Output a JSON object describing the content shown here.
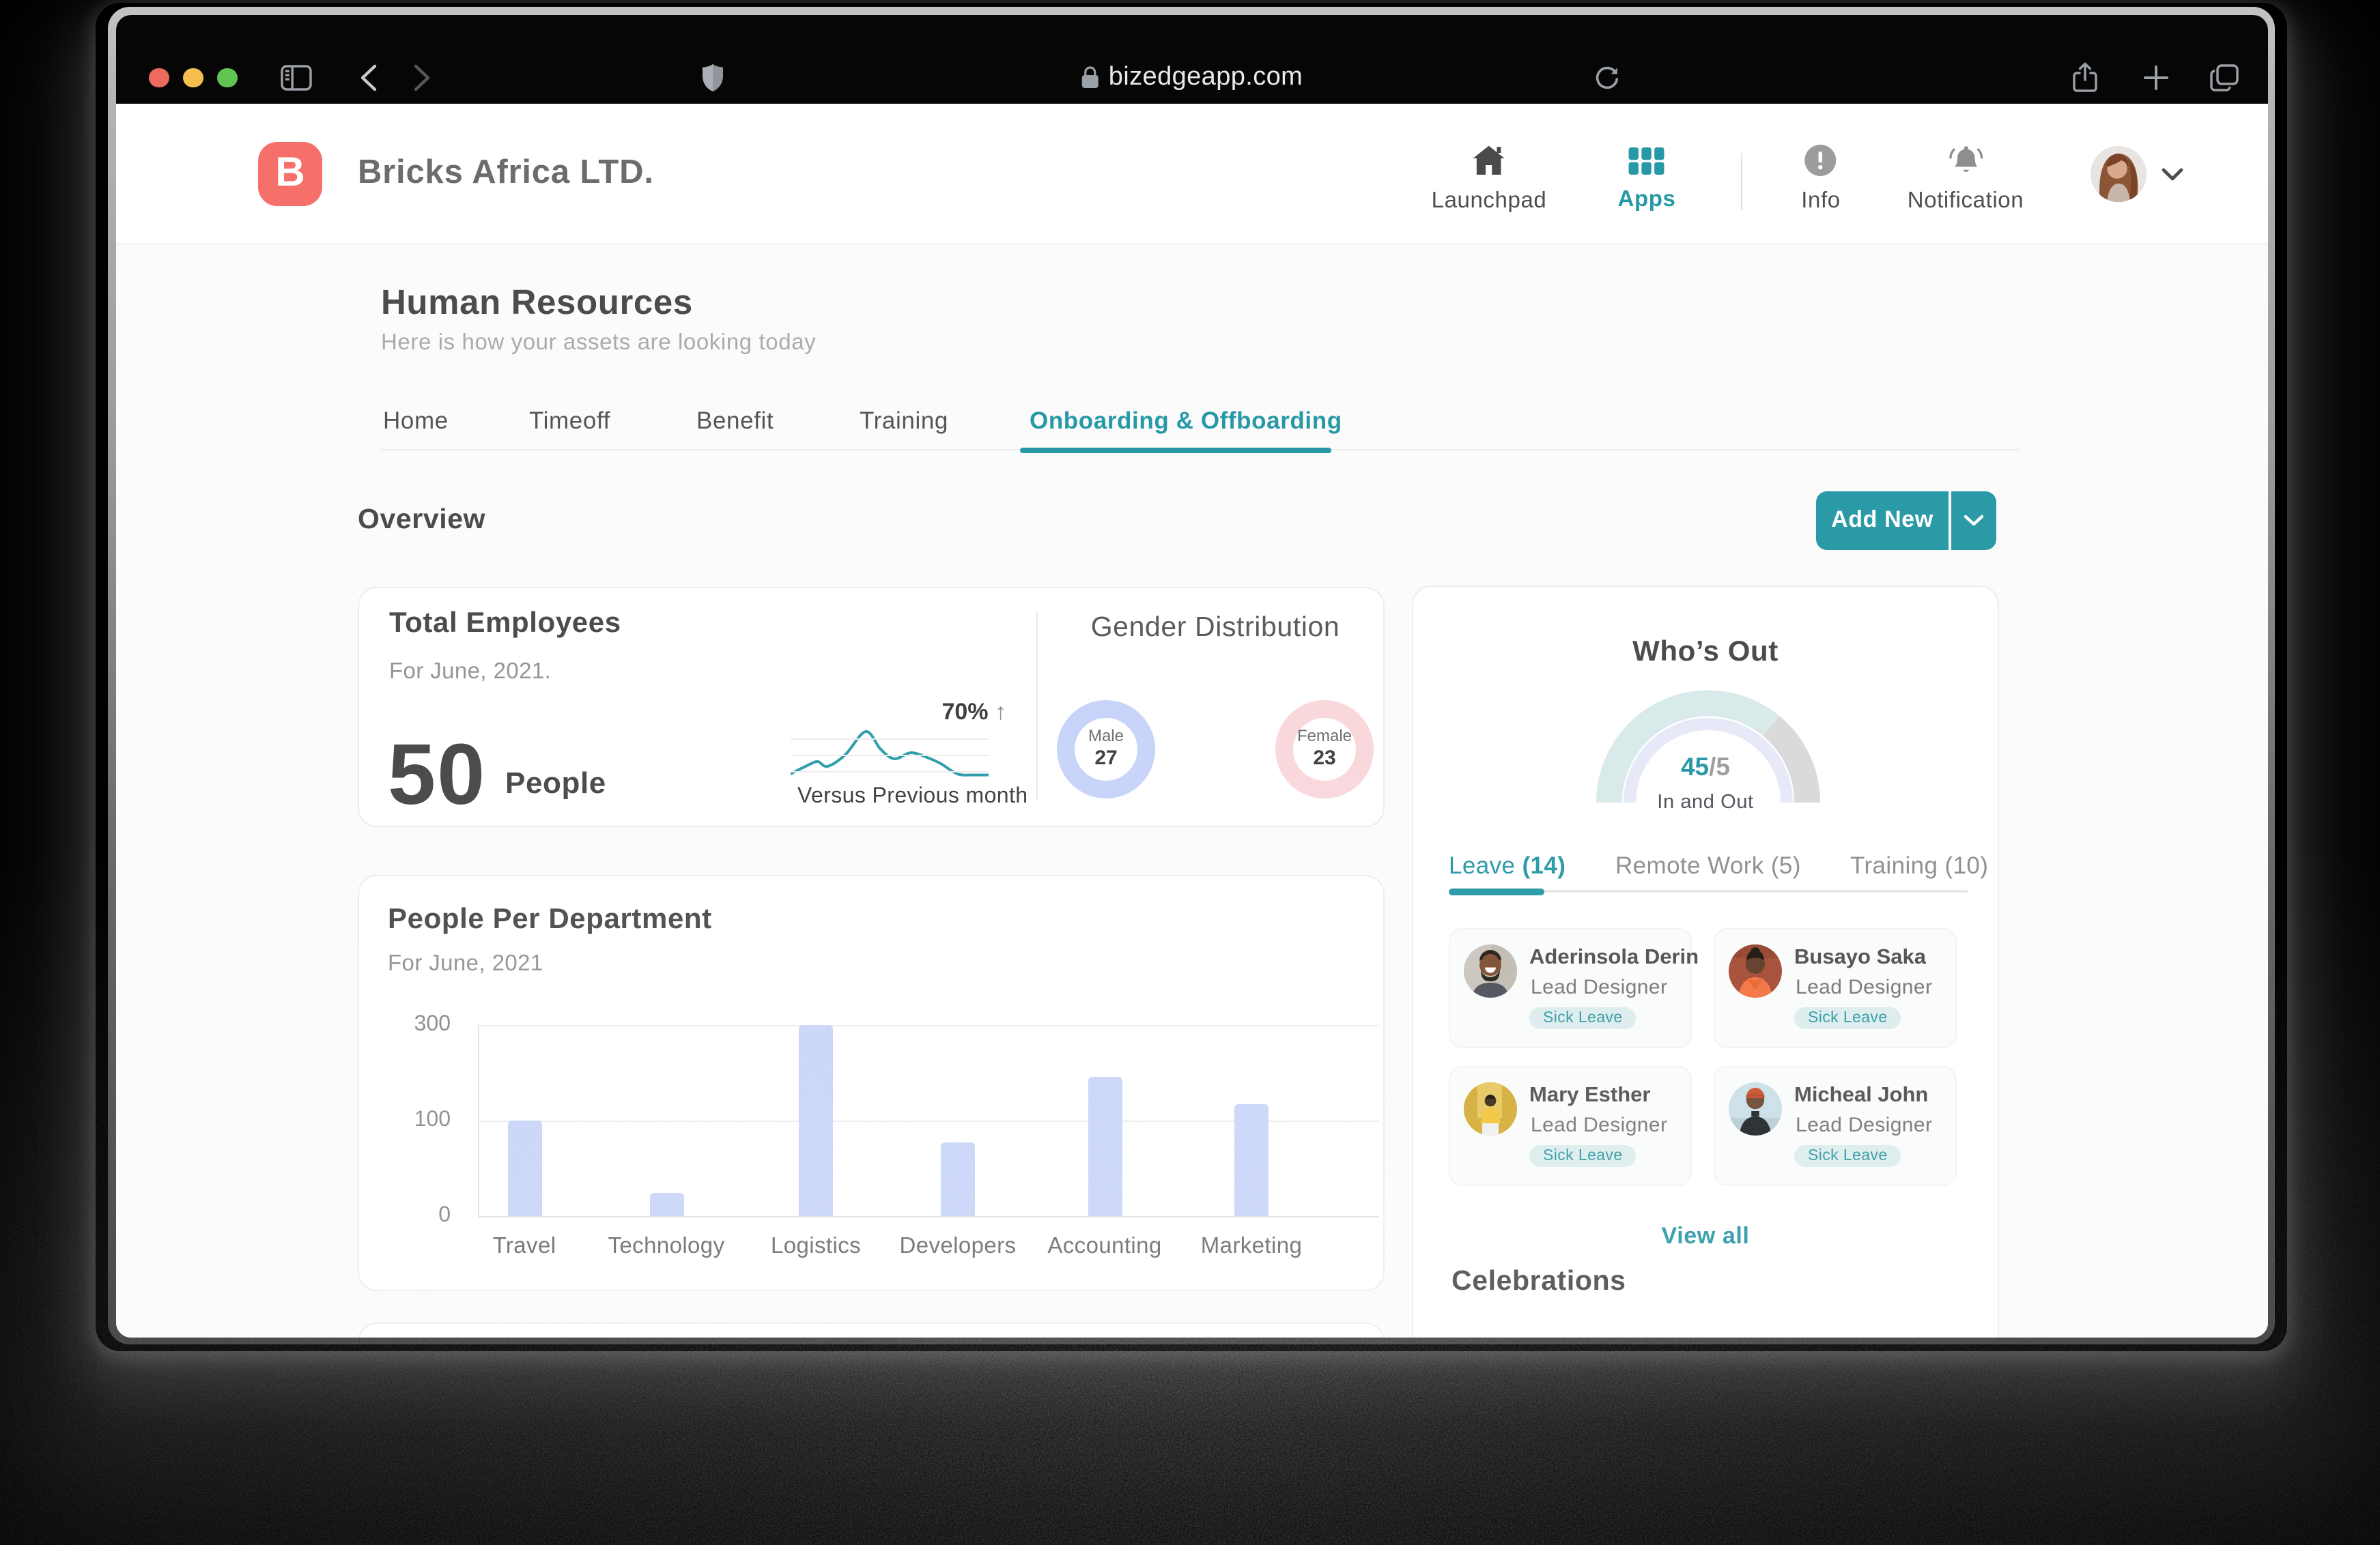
{
  "browser": {
    "url": "bizedgeapp.com",
    "traffic_lights": [
      "close",
      "minimize",
      "zoom"
    ],
    "toolbar_icons": [
      "sidebar-icon",
      "back-icon",
      "forward-icon",
      "shield-icon",
      "lock-icon",
      "reload-icon",
      "share-icon",
      "new-tab-icon",
      "tabs-overview-icon"
    ]
  },
  "nav": {
    "logo_letter": "B",
    "company": "Bricks Africa LTD.",
    "items": [
      {
        "label": "Launchpad",
        "icon": "home-icon",
        "active": false
      },
      {
        "label": "Apps",
        "icon": "apps-grid-icon",
        "active": true
      },
      {
        "label": "Info",
        "icon": "info-icon",
        "active": false
      },
      {
        "label": "Notification",
        "icon": "bell-icon",
        "active": false
      }
    ],
    "avatar": "user-avatar",
    "avatar_menu_icon": "chevron-down-icon"
  },
  "page": {
    "title": "Human Resources",
    "subtitle": "Here is how your assets are looking today",
    "tabs": [
      {
        "label": "Home",
        "active": false
      },
      {
        "label": "Timeoff",
        "active": false
      },
      {
        "label": "Benefit",
        "active": false
      },
      {
        "label": "Training",
        "active": false
      },
      {
        "label": "Onboarding & Offboarding",
        "active": true
      }
    ],
    "section_title": "Overview",
    "add_new_label": "Add New"
  },
  "total_employees": {
    "title": "Total Employees",
    "date": "For June, 2021.",
    "count": "50",
    "unit": "People",
    "trend_pct": "70%",
    "trend_arrow": "↑",
    "trend_label": "Versus Previous month"
  },
  "gender": {
    "title": "Gender Distribution",
    "male_label": "Male",
    "male_value": "27",
    "female_label": "Female",
    "female_value": "23"
  },
  "whos_out": {
    "title": "Who’s Out",
    "gauge_value": "45",
    "gauge_total": "/5",
    "gauge_label": "In and Out",
    "tabs": [
      {
        "label": "Leave",
        "count": "(14)",
        "active": true
      },
      {
        "label": "Remote Work (5)",
        "count": "",
        "active": false
      },
      {
        "label": "Training (10)",
        "count": "",
        "active": false
      }
    ],
    "people": [
      {
        "name": "Aderinsola Derin",
        "role": "Lead Designer",
        "badge": "Sick Leave"
      },
      {
        "name": "Busayo Saka",
        "role": "Lead Designer",
        "badge": "Sick Leave"
      },
      {
        "name": "Mary Esther",
        "role": "Lead Designer",
        "badge": "Sick Leave"
      },
      {
        "name": "Micheal John",
        "role": "Lead Designer",
        "badge": "Sick Leave"
      }
    ],
    "view_all": "View all",
    "celebrations_title": "Celebrations"
  },
  "chart_data": [
    {
      "type": "bar",
      "title": "People Per Department",
      "subtitle": "For June, 2021",
      "categories": [
        "Travel",
        "Technology",
        "Logistics",
        "Developers",
        "Accounting",
        "Marketing"
      ],
      "values": [
        100,
        25,
        300,
        77,
        192,
        135
      ],
      "xlabel": "",
      "ylabel": "",
      "yticks": [
        0,
        100,
        300
      ],
      "ytick_spacing": "equal",
      "bar_color": "#c9d4f8",
      "grid": true,
      "legend": false
    },
    {
      "type": "line",
      "title": "Total employees trend sparkline",
      "annotation": "70% ↑",
      "caption": "Versus Previous month",
      "points_norm": [
        [
          0,
          38
        ],
        [
          13,
          31.5
        ],
        [
          20,
          29
        ],
        [
          27,
          32.5
        ],
        [
          40,
          24
        ],
        [
          55,
          7
        ],
        [
          66,
          20
        ],
        [
          76,
          27
        ],
        [
          88,
          22.5
        ],
        [
          100,
          26
        ],
        [
          110,
          30.5
        ],
        [
          122,
          38
        ],
        [
          133,
          38.8
        ],
        [
          144.5,
          38.8
        ]
      ],
      "color": "#2e9dab"
    },
    {
      "type": "pie",
      "title": "Gender Distribution",
      "slices": [
        {
          "label": "Male",
          "value": 27,
          "color": "#c7d3f8"
        },
        {
          "label": "Female",
          "value": 23,
          "color": "#f9d8dc"
        }
      ]
    },
    {
      "type": "gauge",
      "title": "Who's Out",
      "value": 45,
      "secondary": 5,
      "label": "In and Out",
      "progress_fraction": 0.72,
      "colors": {
        "progress": "#d8eae9",
        "rest": "#dadada",
        "track": "#e8e9f8"
      }
    }
  ],
  "colors": {
    "accent_teal": "#2798a6",
    "logo_red": "#f5706b",
    "bar_lavender": "#c9d4f8",
    "male_ring": "#c7d3f8",
    "female_ring": "#f9d8dc",
    "badge_bg": "#dcecec",
    "traffic_red": "#ee6a5e",
    "traffic_yellow": "#f5bf4f",
    "traffic_green": "#61c554"
  }
}
